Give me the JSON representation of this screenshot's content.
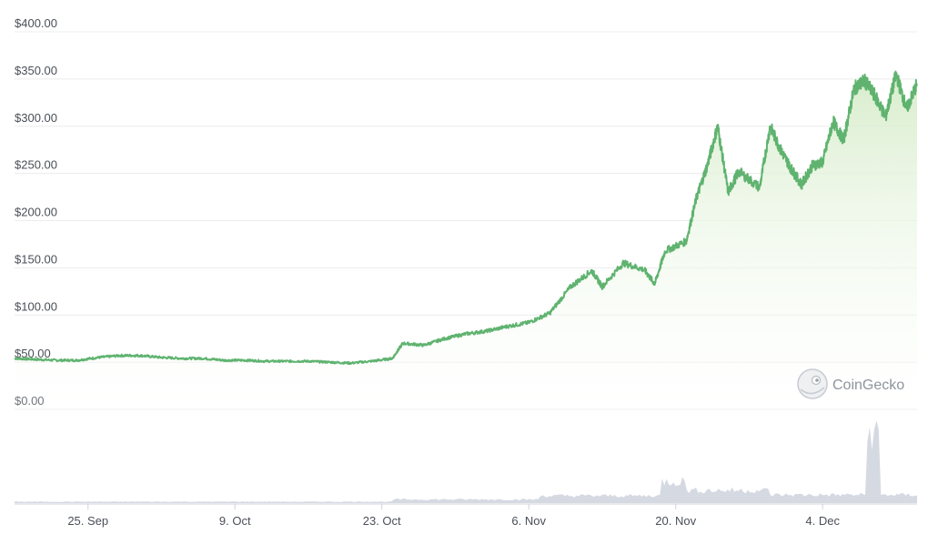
{
  "chart_data": {
    "type": "area",
    "title": "",
    "xlabel": "",
    "ylabel": "",
    "currency_prefix": "$",
    "ylim": [
      0,
      400
    ],
    "yticks": [
      "$400.00",
      "$350.00",
      "$300.00",
      "$250.00",
      "$200.00",
      "$150.00",
      "$100.00",
      "$50.00",
      "$0.00"
    ],
    "xticks": [
      "25. Sep",
      "9. Oct",
      "23. Oct",
      "6. Nov",
      "20. Nov",
      "4. Dec"
    ],
    "xlim": [
      "2023-09-18",
      "2023-12-13"
    ],
    "grid": true,
    "line_color": "#5fb36f",
    "fill_color": "#e6f3dd",
    "volume_color": "#d5d9e2",
    "watermark": "CoinGecko",
    "series": [
      {
        "values": [
          [
            "2023-09-18",
            54
          ],
          [
            "2023-09-20",
            53
          ],
          [
            "2023-09-22",
            52
          ],
          [
            "2023-09-24",
            52
          ],
          [
            "2023-09-26",
            55
          ],
          [
            "2023-09-28",
            57
          ],
          [
            "2023-09-30",
            57
          ],
          [
            "2023-10-02",
            55
          ],
          [
            "2023-10-04",
            54
          ],
          [
            "2023-10-06",
            54
          ],
          [
            "2023-10-08",
            52
          ],
          [
            "2023-10-10",
            52
          ],
          [
            "2023-10-12",
            51
          ],
          [
            "2023-10-14",
            51
          ],
          [
            "2023-10-16",
            51
          ],
          [
            "2023-10-18",
            50
          ],
          [
            "2023-10-20",
            49
          ],
          [
            "2023-10-22",
            51
          ],
          [
            "2023-10-24",
            54
          ],
          [
            "2023-10-25",
            70
          ],
          [
            "2023-10-27",
            68
          ],
          [
            "2023-10-29",
            75
          ],
          [
            "2023-10-31",
            80
          ],
          [
            "2023-11-02",
            83
          ],
          [
            "2023-11-04",
            88
          ],
          [
            "2023-11-06",
            92
          ],
          [
            "2023-11-08",
            102
          ],
          [
            "2023-11-10",
            130
          ],
          [
            "2023-11-12",
            147
          ],
          [
            "2023-11-13",
            130
          ],
          [
            "2023-11-15",
            155
          ],
          [
            "2023-11-17",
            148
          ],
          [
            "2023-11-18",
            133
          ],
          [
            "2023-11-19",
            168
          ],
          [
            "2023-11-21",
            178
          ],
          [
            "2023-11-22",
            225
          ],
          [
            "2023-11-23",
            258
          ],
          [
            "2023-11-24",
            300
          ],
          [
            "2023-11-25",
            230
          ],
          [
            "2023-11-26",
            252
          ],
          [
            "2023-11-28",
            235
          ],
          [
            "2023-11-29",
            300
          ],
          [
            "2023-11-30",
            275
          ],
          [
            "2023-12-01",
            255
          ],
          [
            "2023-12-02",
            238
          ],
          [
            "2023-12-03",
            258
          ],
          [
            "2023-12-04",
            262
          ],
          [
            "2023-12-05",
            305
          ],
          [
            "2023-12-06",
            285
          ],
          [
            "2023-12-07",
            340
          ],
          [
            "2023-12-08",
            348
          ],
          [
            "2023-12-09",
            332
          ],
          [
            "2023-12-10",
            310
          ],
          [
            "2023-12-11",
            355
          ],
          [
            "2023-12-12",
            318
          ],
          [
            "2023-12-13",
            345
          ]
        ]
      }
    ]
  }
}
